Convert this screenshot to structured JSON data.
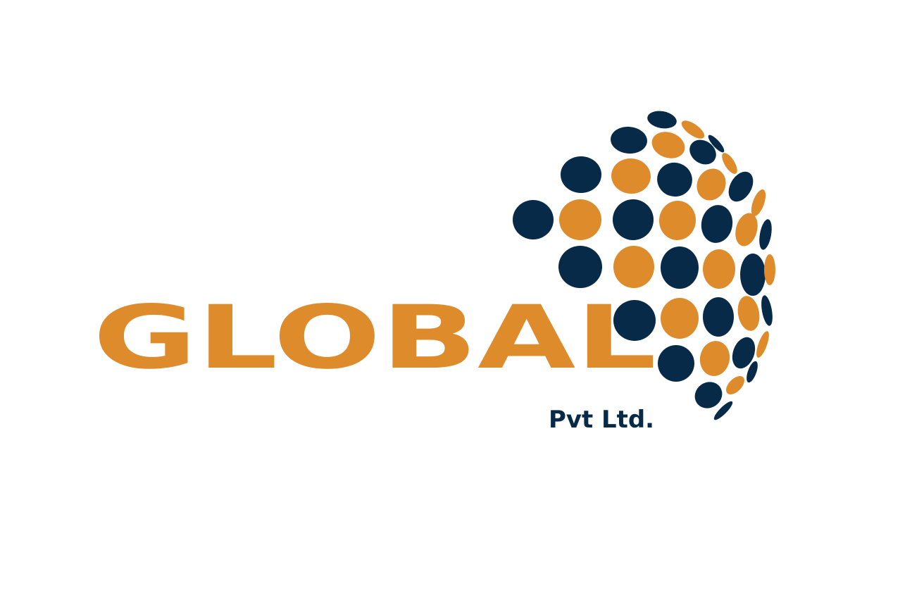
{
  "logo": {
    "wordmark": "GLOBAL",
    "tagline": "Pvt Ltd.",
    "colors": {
      "orange": "#DE8B2B",
      "navy": "#062A47",
      "background": "#FFFFFF"
    },
    "icon": "dotted-globe-icon"
  }
}
